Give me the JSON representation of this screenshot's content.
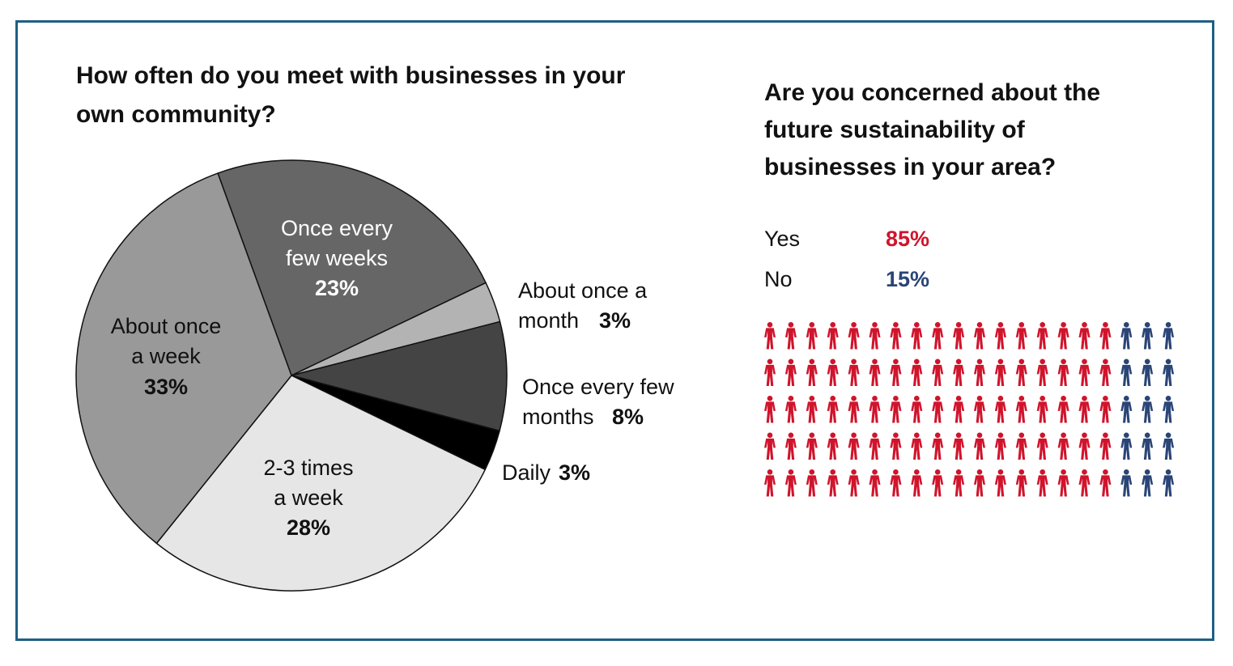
{
  "colors": {
    "frame": "#1f5f84",
    "yes": "#d0142c",
    "no": "#2a4576",
    "pie": {
      "Once every few weeks": "#666666",
      "About once a month": "#b3b3b3",
      "Once every few months": "#444444",
      "Daily": "#000000",
      "2-3 times a week": "#e6e6e6",
      "About once a week": "#999999"
    }
  },
  "chart_data": [
    {
      "type": "pie",
      "title": "How often do you meet with businesses in your own community?",
      "slices": [
        {
          "label": "Once every few weeks",
          "value": 23,
          "display": "23%"
        },
        {
          "label": "About once a month",
          "value": 3,
          "display": "3%"
        },
        {
          "label": "Once every few months",
          "value": 8,
          "display": "8%"
        },
        {
          "label": "Daily",
          "value": 3,
          "display": "3%"
        },
        {
          "label": "2-3 times a week",
          "value": 28,
          "display": "28%"
        },
        {
          "label": "About once a week",
          "value": 33,
          "display": "33%"
        }
      ]
    },
    {
      "type": "bar",
      "title": "Are you concerned about the future sustainability of businesses in your area?",
      "categories": [
        "Yes",
        "No"
      ],
      "values": [
        85,
        15
      ],
      "display": [
        "85%",
        "15%"
      ],
      "icon": "person-icon",
      "icons_per_row": 20,
      "rows": 5
    }
  ],
  "labels": {
    "few_weeks": {
      "line1": "Once every",
      "line2": "few weeks"
    },
    "month": {
      "line1": "About once a",
      "line2": "month"
    },
    "few_months": {
      "line1": "Once every few",
      "line2": "months"
    },
    "daily": {
      "line1": "Daily"
    },
    "times_week": {
      "line1": "2-3 times",
      "line2": "a week"
    },
    "once_week": {
      "line1": "About once",
      "line2": "a week"
    }
  }
}
